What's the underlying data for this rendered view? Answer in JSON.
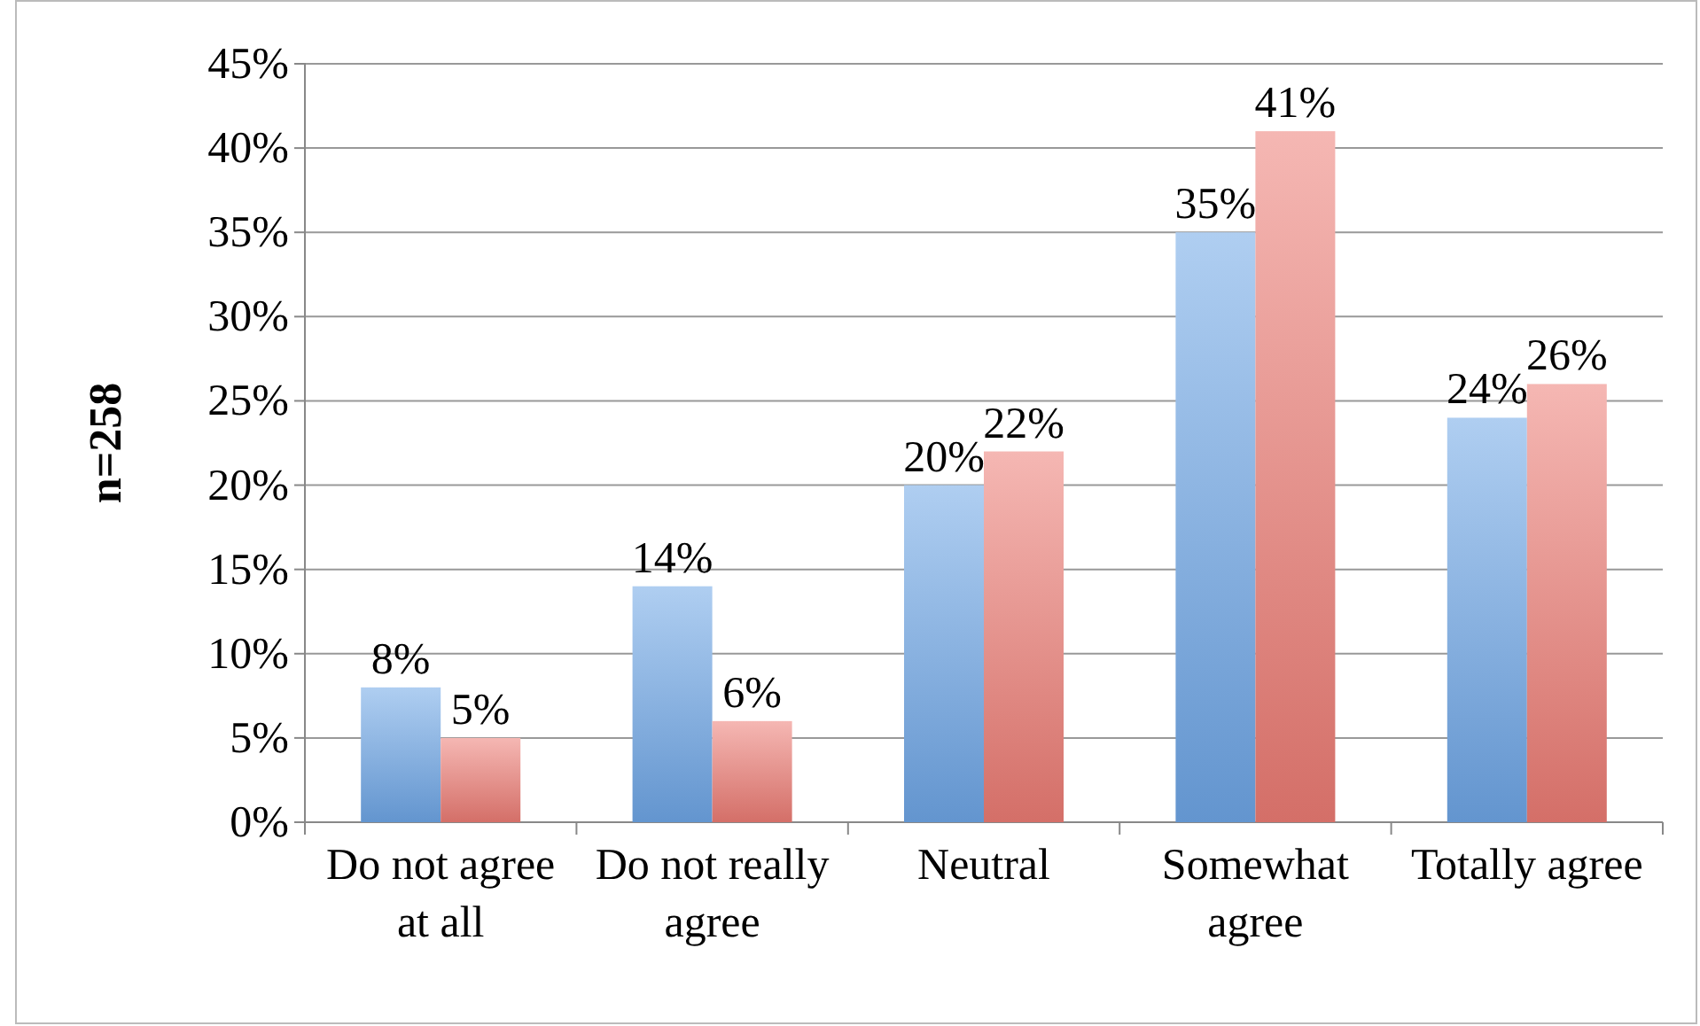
{
  "chart_data": {
    "type": "bar",
    "ylabel": "n=258",
    "categories": [
      "Do not agree at all",
      "Do not really agree",
      "Neutral",
      "Somewhat agree",
      "Totally agree"
    ],
    "series": [
      {
        "color": "#6ea6e6",
        "values": [
          8,
          14,
          20,
          35,
          24
        ],
        "value_labels": [
          "8%",
          "14%",
          "20%",
          "35%",
          "24%"
        ]
      },
      {
        "color": "#ec7c74",
        "values": [
          5,
          6,
          22,
          41,
          26
        ],
        "value_labels": [
          "5%",
          "6%",
          "22%",
          "41%",
          "26%"
        ]
      }
    ],
    "ylim": [
      0,
      45
    ],
    "yticks": [
      {
        "value": 0,
        "label": "0%"
      },
      {
        "value": 5,
        "label": "5%"
      },
      {
        "value": 10,
        "label": "10%"
      },
      {
        "value": 15,
        "label": "15%"
      },
      {
        "value": 20,
        "label": "20%"
      },
      {
        "value": 25,
        "label": "25%"
      },
      {
        "value": 30,
        "label": "30%"
      },
      {
        "value": 35,
        "label": "35%"
      },
      {
        "value": 40,
        "label": "40%"
      },
      {
        "value": 45,
        "label": "45%"
      }
    ],
    "grid": "y"
  }
}
